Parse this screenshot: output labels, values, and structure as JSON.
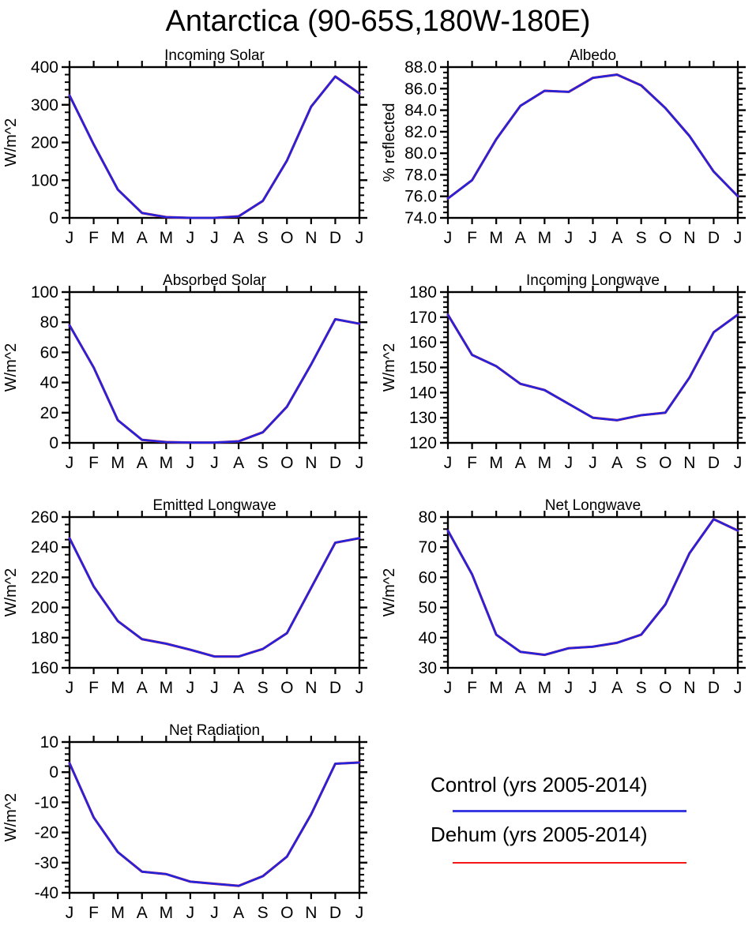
{
  "title": "Antarctica (90-65S,180W-180E)",
  "months": [
    "J",
    "F",
    "M",
    "A",
    "M",
    "J",
    "J",
    "A",
    "S",
    "O",
    "N",
    "D",
    "J"
  ],
  "legend": {
    "entries": [
      {
        "label": "Control (yrs 2005-2014)",
        "color": "#3A3AE2"
      },
      {
        "label": "Dehum (yrs 2005-2014)",
        "color": "#F51616"
      }
    ]
  },
  "chart_data": [
    {
      "type": "line",
      "id": "incoming-solar",
      "title": "Incoming Solar",
      "ylabel": "W/m^2",
      "ylim": [
        0,
        400
      ],
      "yticks": [
        0,
        100,
        200,
        300,
        400
      ],
      "yminor_per_major": 4,
      "ydecimals": 0,
      "categories": [
        "J",
        "F",
        "M",
        "A",
        "M",
        "J",
        "J",
        "A",
        "S",
        "O",
        "N",
        "D",
        "J"
      ],
      "series": [
        {
          "name": "Control",
          "color": "#2424DC",
          "values": [
            325,
            195,
            75,
            13,
            2,
            0,
            0,
            4,
            45,
            152,
            295,
            375,
            330
          ]
        },
        {
          "name": "Dehum",
          "color": "#F51616",
          "values": [
            325,
            195,
            75,
            13,
            2,
            0,
            0,
            4,
            45,
            152,
            295,
            375,
            330
          ]
        }
      ]
    },
    {
      "type": "line",
      "id": "albedo",
      "title": "Albedo",
      "ylabel": "% reflected",
      "ylim": [
        74,
        88
      ],
      "yticks": [
        74,
        76,
        78,
        80,
        82,
        84,
        86,
        88
      ],
      "yminor_per_major": 3,
      "ydecimals": 1,
      "categories": [
        "J",
        "F",
        "M",
        "A",
        "M",
        "J",
        "J",
        "A",
        "S",
        "O",
        "N",
        "D",
        "J"
      ],
      "series": [
        {
          "name": "Control",
          "color": "#2424DC",
          "values": [
            75.8,
            77.5,
            81.3,
            84.4,
            85.8,
            85.7,
            87.0,
            87.3,
            86.3,
            84.2,
            81.6,
            78.3,
            76.0
          ]
        },
        {
          "name": "Dehum",
          "color": "#F51616",
          "values": [
            75.8,
            77.5,
            81.3,
            84.4,
            85.8,
            85.7,
            87.0,
            87.3,
            86.3,
            84.2,
            81.6,
            78.3,
            76.0
          ]
        }
      ]
    },
    {
      "type": "line",
      "id": "absorbed-solar",
      "title": "Absorbed Solar",
      "ylabel": "W/m^2",
      "ylim": [
        0,
        100
      ],
      "yticks": [
        0,
        20,
        40,
        60,
        80,
        100
      ],
      "yminor_per_major": 3,
      "ydecimals": 0,
      "categories": [
        "J",
        "F",
        "M",
        "A",
        "M",
        "J",
        "J",
        "A",
        "S",
        "O",
        "N",
        "D",
        "J"
      ],
      "series": [
        {
          "name": "Control",
          "color": "#2424DC",
          "values": [
            78,
            50,
            15,
            2,
            0.5,
            0.2,
            0.2,
            1,
            7,
            24,
            52,
            82,
            79
          ]
        },
        {
          "name": "Dehum",
          "color": "#F51616",
          "values": [
            78,
            50,
            15,
            2,
            0.5,
            0.2,
            0.2,
            1,
            7,
            24,
            52,
            82,
            79
          ]
        }
      ]
    },
    {
      "type": "line",
      "id": "incoming-longwave",
      "title": "Incoming Longwave",
      "ylabel": "W/m^2",
      "ylim": [
        120,
        180
      ],
      "yticks": [
        120,
        130,
        140,
        150,
        160,
        170,
        180
      ],
      "yminor_per_major": 4,
      "ydecimals": 0,
      "categories": [
        "J",
        "F",
        "M",
        "A",
        "M",
        "J",
        "J",
        "A",
        "S",
        "O",
        "N",
        "D",
        "J"
      ],
      "series": [
        {
          "name": "Control",
          "color": "#2424DC",
          "values": [
            171,
            155,
            150.5,
            143.5,
            141,
            135.5,
            130,
            129,
            131,
            132,
            146,
            164,
            171
          ]
        },
        {
          "name": "Dehum",
          "color": "#F51616",
          "values": [
            171,
            155,
            150.5,
            143.5,
            141,
            135.5,
            130,
            129,
            131,
            132,
            146,
            164,
            171
          ]
        }
      ]
    },
    {
      "type": "line",
      "id": "emitted-longwave",
      "title": "Emitted Longwave",
      "ylabel": "W/m^2",
      "ylim": [
        160,
        260
      ],
      "yticks": [
        160,
        180,
        200,
        220,
        240,
        260
      ],
      "yminor_per_major": 3,
      "ydecimals": 0,
      "categories": [
        "J",
        "F",
        "M",
        "A",
        "M",
        "J",
        "J",
        "A",
        "S",
        "O",
        "N",
        "D",
        "J"
      ],
      "series": [
        {
          "name": "Control",
          "color": "#2424DC",
          "values": [
            246,
            214,
            191,
            179,
            176,
            172,
            167.5,
            167.5,
            172.5,
            183,
            213,
            243,
            246
          ]
        },
        {
          "name": "Dehum",
          "color": "#F51616",
          "values": [
            246,
            214,
            191,
            179,
            176,
            172,
            167.5,
            167.5,
            172.5,
            183,
            213,
            243,
            246
          ]
        }
      ]
    },
    {
      "type": "line",
      "id": "net-longwave",
      "title": "Net Longwave",
      "ylabel": "W/m^2",
      "ylim": [
        30,
        80
      ],
      "yticks": [
        30,
        40,
        50,
        60,
        70,
        80
      ],
      "yminor_per_major": 4,
      "ydecimals": 0,
      "categories": [
        "J",
        "F",
        "M",
        "A",
        "M",
        "J",
        "J",
        "A",
        "S",
        "O",
        "N",
        "D",
        "J"
      ],
      "series": [
        {
          "name": "Control",
          "color": "#2424DC",
          "values": [
            75.5,
            61,
            41,
            35.3,
            34.3,
            36.5,
            37,
            38.3,
            41,
            51,
            68,
            79.3,
            75.5
          ]
        },
        {
          "name": "Dehum",
          "color": "#F51616",
          "values": [
            75.5,
            61,
            41,
            35.3,
            34.3,
            36.5,
            37,
            38.3,
            41,
            51,
            68,
            79.3,
            75.5
          ]
        }
      ]
    },
    {
      "type": "line",
      "id": "net-radiation",
      "title": "Net Radiation",
      "ylabel": "W/m^2",
      "ylim": [
        -40,
        10
      ],
      "yticks": [
        -40,
        -30,
        -20,
        -10,
        0,
        10
      ],
      "yminor_per_major": 4,
      "ydecimals": 0,
      "categories": [
        "J",
        "F",
        "M",
        "A",
        "M",
        "J",
        "J",
        "A",
        "S",
        "O",
        "N",
        "D",
        "J"
      ],
      "series": [
        {
          "name": "Control",
          "color": "#2424DC",
          "values": [
            3,
            -15,
            -26.5,
            -33,
            -33.8,
            -36.3,
            -37,
            -37.7,
            -34.5,
            -28,
            -14,
            2.8,
            3.2
          ]
        },
        {
          "name": "Dehum",
          "color": "#F51616",
          "values": [
            3,
            -15,
            -26.5,
            -33,
            -33.8,
            -36.3,
            -37,
            -37.7,
            -34.5,
            -28,
            -14,
            2.8,
            3.2
          ]
        }
      ]
    }
  ]
}
